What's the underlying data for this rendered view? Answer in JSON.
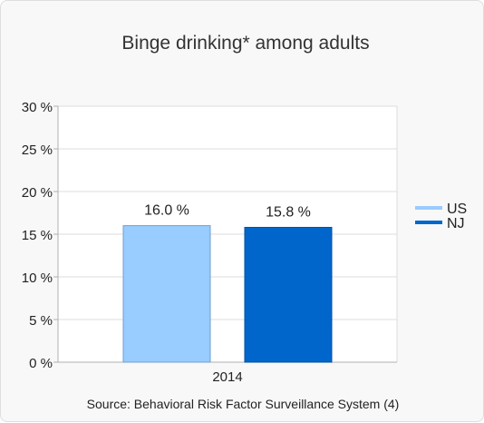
{
  "chart_data": {
    "type": "bar",
    "title": "Binge drinking* among adults",
    "categories": [
      "2014"
    ],
    "series": [
      {
        "name": "US",
        "values": [
          16.0
        ],
        "color": "#99ccff",
        "label": "16.0 %"
      },
      {
        "name": "NJ",
        "values": [
          15.8
        ],
        "color": "#0066cc",
        "label": "15.8 %"
      }
    ],
    "ylim": [
      0,
      30
    ],
    "yticks": [
      {
        "value": 0,
        "label": "0 %"
      },
      {
        "value": 5,
        "label": "5 %"
      },
      {
        "value": 10,
        "label": "10 %"
      },
      {
        "value": 15,
        "label": "15 %"
      },
      {
        "value": 20,
        "label": "20 %"
      },
      {
        "value": 25,
        "label": "25 %"
      },
      {
        "value": 30,
        "label": "30 %"
      }
    ],
    "grid": true,
    "legend_position": "right",
    "source": "Source: Behavioral Risk Factor Surveillance System (4)"
  }
}
